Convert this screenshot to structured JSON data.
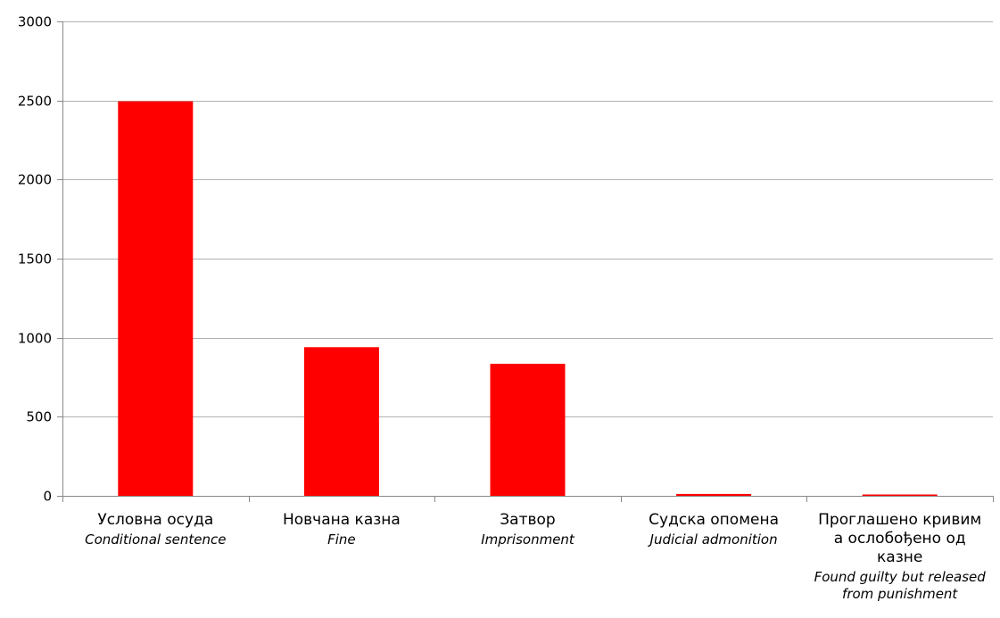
{
  "chart_data": {
    "type": "bar",
    "categories": [
      {
        "label": "Условна осуда",
        "label_en": "Conditional sentence"
      },
      {
        "label": "Новчана казна",
        "label_en": "Fine"
      },
      {
        "label": "Затвор",
        "label_en": "Imprisonment"
      },
      {
        "label": "Судска опомена",
        "label_en": "Judicial admonition"
      },
      {
        "label": "Проглашено кривим\nа ослобођено од\nказне",
        "label_en": "Found guilty but released\nfrom punishment"
      }
    ],
    "values": [
      2495,
      940,
      835,
      12,
      5
    ],
    "ylim": [
      0,
      3000
    ],
    "yticks": [
      0,
      500,
      1000,
      1500,
      2000,
      2500,
      3000
    ],
    "ytick_labels": [
      "0",
      "500",
      "1000",
      "1500",
      "2000",
      "2500",
      "3000"
    ],
    "grid": true,
    "bar_color": "#ff0000",
    "grid_color": "#b0b0b0",
    "axis_color": "#888888"
  }
}
